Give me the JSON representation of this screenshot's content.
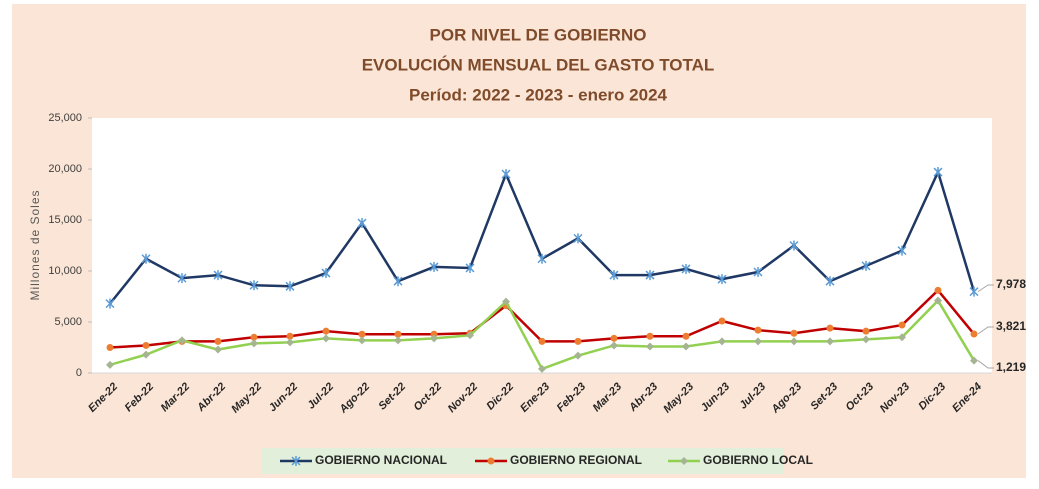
{
  "chart_data": {
    "type": "line",
    "title": [
      "POR NIVEL DE GOBIERNO",
      "EVOLUCIÓN MENSUAL DEL GASTO TOTAL",
      "Períod: 2022 - 2023 - enero 2024"
    ],
    "y_axis_label": "Millones de Soles",
    "categories": [
      "Ene-22",
      "Feb-22",
      "Mar-22",
      "Abr-22",
      "May-22",
      "Jun-22",
      "Jul-22",
      "Ago-22",
      "Set-22",
      "Oct-22",
      "Nov-22",
      "Dic-22",
      "Ene-23",
      "Feb-23",
      "Mar-23",
      "Abr-23",
      "May-23",
      "Jun-23",
      "Jul-23",
      "Ago-23",
      "Set-23",
      "Oct-23",
      "Nov-23",
      "Dic-23",
      "Ene-24"
    ],
    "series": [
      {
        "name": "GOBIERNO NACIONAL",
        "color": "#1f3864",
        "marker_color": "#5b9bd5",
        "marker": "star",
        "values": [
          6800,
          11200,
          9300,
          9600,
          8600,
          8500,
          9800,
          14700,
          9000,
          10400,
          10300,
          19500,
          11200,
          13200,
          9600,
          9600,
          10200,
          9200,
          9900,
          12500,
          9000,
          10500,
          12000,
          19700,
          7978
        ],
        "value_labels": [
          null,
          null,
          null,
          null,
          null,
          null,
          null,
          null,
          null,
          null,
          null,
          null,
          null,
          null,
          null,
          null,
          null,
          null,
          null,
          null,
          null,
          null,
          null,
          null,
          "7,978"
        ]
      },
      {
        "name": "GOBIERNO REGIONAL",
        "color": "#c00000",
        "marker_color": "#ed7d31",
        "marker": "circle",
        "values": [
          2500,
          2700,
          3100,
          3100,
          3500,
          3600,
          4100,
          3800,
          3800,
          3800,
          3900,
          6600,
          3100,
          3100,
          3400,
          3600,
          3600,
          5100,
          4200,
          3900,
          4400,
          4100,
          4700,
          8100,
          3821
        ],
        "value_labels": [
          null,
          null,
          null,
          null,
          null,
          null,
          null,
          null,
          null,
          null,
          null,
          null,
          null,
          null,
          null,
          null,
          null,
          null,
          null,
          null,
          null,
          null,
          null,
          null,
          "3,821"
        ]
      },
      {
        "name": "GOBIERNO LOCAL",
        "color": "#92d050",
        "marker_color": "#a5b592",
        "marker": "diamond",
        "values": [
          800,
          1800,
          3200,
          2300,
          2900,
          3000,
          3400,
          3200,
          3200,
          3400,
          3700,
          7000,
          400,
          1700,
          2700,
          2600,
          2600,
          3100,
          3100,
          3100,
          3100,
          3300,
          3500,
          7100,
          1219
        ],
        "value_labels": [
          null,
          null,
          null,
          null,
          null,
          null,
          null,
          null,
          null,
          null,
          null,
          null,
          null,
          null,
          null,
          null,
          null,
          null,
          null,
          null,
          null,
          null,
          null,
          null,
          "1,219"
        ]
      }
    ],
    "ylim": [
      0,
      25000
    ],
    "yticks": [
      0,
      {
        "value": 5000,
        "label": "5,000"
      },
      {
        "value": 10000,
        "label": "10,000"
      },
      {
        "value": 15000,
        "label": "15,000"
      },
      {
        "value": 20000,
        "label": "20,000"
      },
      {
        "value": 25000,
        "label": "25,000"
      }
    ],
    "legend": "bottom"
  }
}
